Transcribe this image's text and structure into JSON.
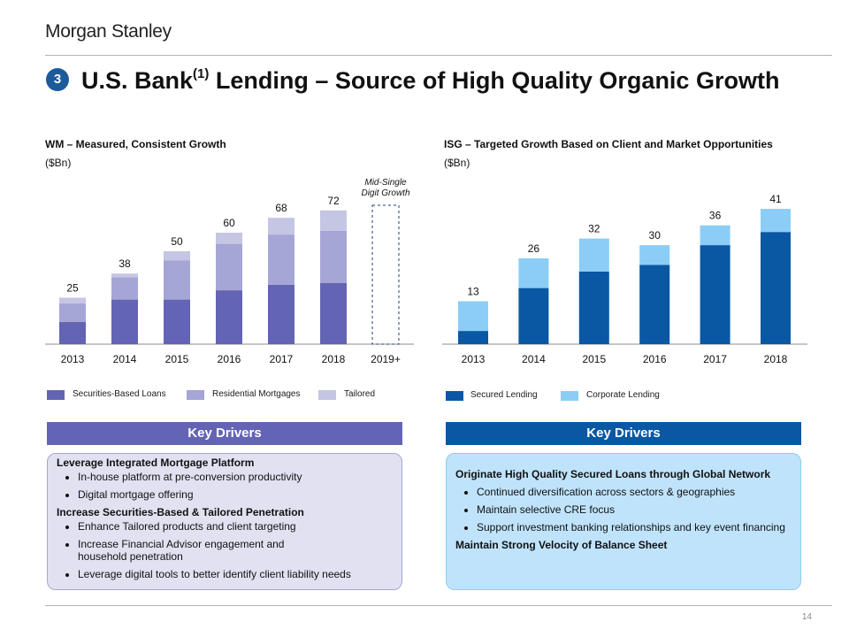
{
  "header": {
    "logo_text": "Morgan Stanley",
    "badge": "3",
    "title_main": "U.S. Bank",
    "title_sup": "(1)",
    "title_rest": " Lending – Source of High Quality Organic Growth"
  },
  "footer": {
    "page_number": "14"
  },
  "colors": {
    "badge": "#1c5a9a",
    "wm_securities": "#6464b4",
    "wm_residential": "#a5a5d6",
    "wm_tailored": "#c5c5e4",
    "isg_secured": "#0a58a4",
    "isg_corporate": "#8ccdf6",
    "wm_header": "#6464b4",
    "isg_header": "#0a58a4",
    "wm_box_bg": "#e1e1f2",
    "isg_box_bg": "#bfe3fb"
  },
  "wm_chart": {
    "title": "WM – Measured, Consistent  Growth",
    "unit": "($Bn)",
    "projection_note_line1": "Mid-Single",
    "projection_note_line2": "Digit Growth",
    "legend": [
      "Securities-Based Loans",
      "Residential Mortgages",
      "Tailored"
    ]
  },
  "isg_chart": {
    "title": "ISG – Targeted Growth Based on Client and Market Opportunities",
    "unit": "($Bn)",
    "legend": [
      "Secured Lending",
      "Corporate Lending"
    ]
  },
  "chart_data": [
    {
      "type": "bar",
      "stacked": true,
      "title": "WM – Measured, Consistent  Growth",
      "ylabel": "($Bn)",
      "categories": [
        "2013",
        "2014",
        "2015",
        "2016",
        "2017",
        "2018",
        "2019+"
      ],
      "totals": [
        25,
        38,
        50,
        60,
        68,
        72,
        null
      ],
      "series": [
        {
          "name": "Securities-Based Loans",
          "values": [
            12,
            24,
            24,
            29,
            32,
            33,
            null
          ]
        },
        {
          "name": "Residential Mortgages",
          "values": [
            10,
            12,
            21,
            25,
            27,
            28,
            null
          ]
        },
        {
          "name": "Tailored",
          "values": [
            3,
            2,
            5,
            6,
            9,
            11,
            null
          ]
        }
      ],
      "annotation": "Mid-Single Digit Growth",
      "legend_position": "bottom",
      "grid": false
    },
    {
      "type": "bar",
      "stacked": true,
      "title": "ISG – Targeted Growth Based on Client and Market Opportunities",
      "ylabel": "($Bn)",
      "categories": [
        "2013",
        "2014",
        "2015",
        "2016",
        "2017",
        "2018"
      ],
      "totals": [
        13,
        26,
        32,
        30,
        36,
        41
      ],
      "series": [
        {
          "name": "Secured Lending",
          "values": [
            4,
            17,
            22,
            24,
            30,
            34
          ]
        },
        {
          "name": "Corporate Lending",
          "values": [
            9,
            9,
            10,
            6,
            6,
            7
          ]
        }
      ],
      "legend_position": "bottom",
      "grid": false
    }
  ],
  "wm_drivers": {
    "header": "Key Drivers",
    "sections": [
      {
        "heading": "Leverage Integrated Mortgage Platform",
        "bullets": [
          "In-house  platform  at pre-conversion   productivity",
          "Digital  mortgage  offering"
        ]
      },
      {
        "heading": "Increase Securities-Based  & Tailored Penetration",
        "bullets": [
          "Enhance Tailored  products  and client targeting",
          "Increase Financial Advisor engagement  and household  penetration",
          "Leverage  digital tools to better identify client liability needs"
        ]
      }
    ]
  },
  "isg_drivers": {
    "header": "Key Drivers",
    "heading1": "Originate High Quality Secured Loans through Global Network",
    "bullets": [
      "Continued  diversification  across sectors & geographies",
      "Maintain selective CRE focus",
      "Support investment banking relationships and key event financing"
    ],
    "heading2": "Maintain Strong Velocity of Balance Sheet"
  }
}
